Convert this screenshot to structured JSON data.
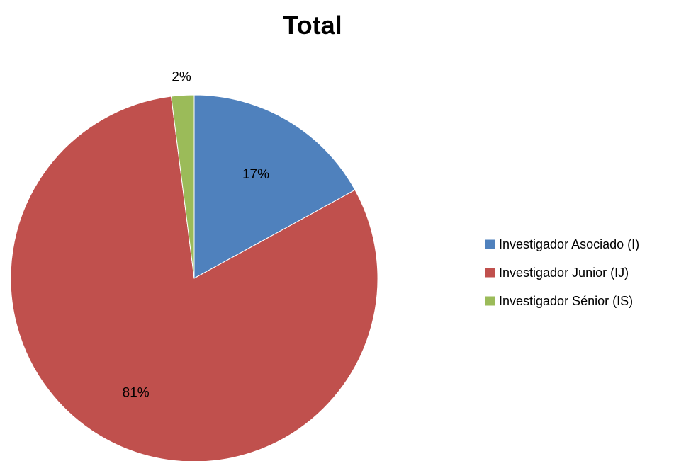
{
  "chart_data": {
    "type": "pie",
    "title": "Total",
    "legend_position": "right",
    "categories": [
      "Investigador Asociado (I)",
      "Investigador Junior (IJ)",
      "Investigador Sénior (IS)"
    ],
    "values": [
      17,
      81,
      2
    ],
    "data_labels": [
      "17%",
      "81%",
      "2%"
    ],
    "colors": [
      "#4f81bd",
      "#c0504d",
      "#9bbb59"
    ]
  }
}
